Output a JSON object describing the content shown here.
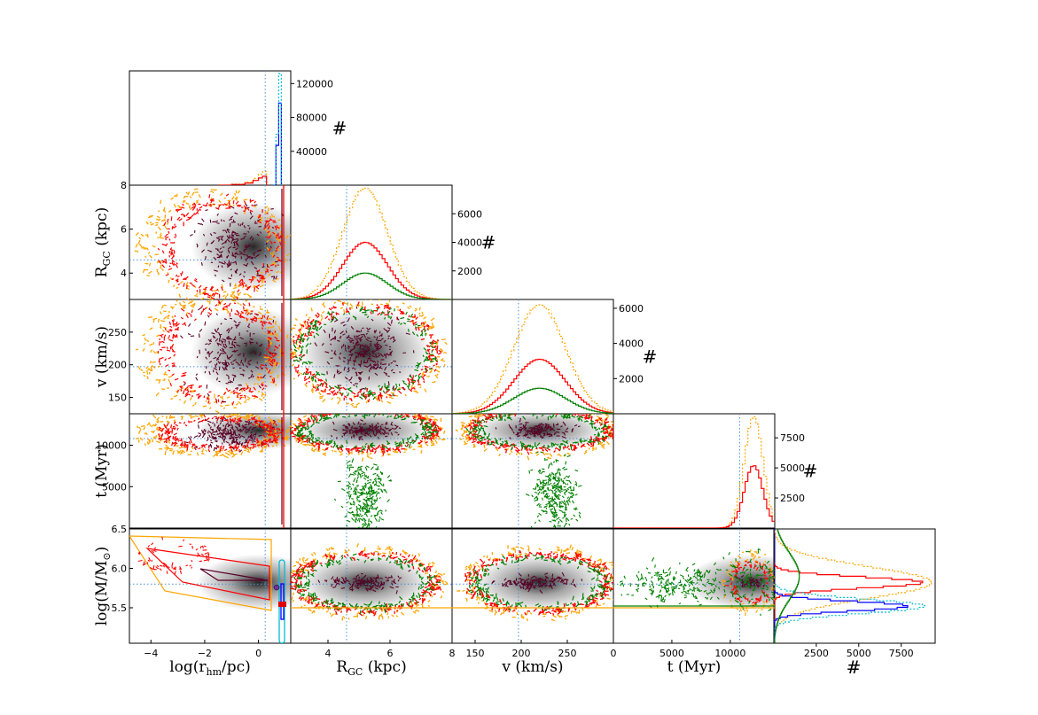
{
  "figure": {
    "type": "corner-plot",
    "background": "#ffffff",
    "colors": {
      "orange": "#ffa500",
      "red": "#ff0000",
      "green": "#008000",
      "blue": "#0000ff",
      "cyan": "#00bcd4",
      "maroon": "#5a0028",
      "dotted": "#4a90d9",
      "density": "#000000"
    }
  },
  "chart_data": {
    "type": "scatter",
    "variables": [
      {
        "name": "log(r_hm/pc)",
        "label_main": "log(r",
        "label_sub": "hm",
        "label_tail": "/pc)",
        "range": [
          -4.8,
          1.2
        ],
        "ticks": [
          -4,
          -2,
          0
        ],
        "tick_labels": [
          "−4",
          "−2",
          "0"
        ],
        "truth": 0.25
      },
      {
        "name": "R_GC (kpc)",
        "label_main": "R",
        "label_sub": "GC",
        "label_tail": " (kpc)",
        "range": [
          2.8,
          8.0
        ],
        "ticks": [
          4,
          6,
          8
        ],
        "tick_labels": [
          "4",
          "6",
          "8"
        ],
        "truth": 4.6
      },
      {
        "name": "v (km/s)",
        "label_main": "v (km/s)",
        "label_sub": "",
        "label_tail": "",
        "range": [
          125,
          300
        ],
        "ticks": [
          150,
          200,
          250
        ],
        "tick_labels": [
          "150",
          "200",
          "250"
        ],
        "truth": 197
      },
      {
        "name": "t (Myr)",
        "label_main": "t (Myr)",
        "label_sub": "",
        "label_tail": "",
        "range": [
          0,
          13800
        ],
        "ticks": [
          0,
          5000,
          10000
        ],
        "tick_labels": [
          "0",
          "5000",
          "10000"
        ],
        "ylabels_side": [
          "5000",
          "10000"
        ],
        "truth": 10800
      },
      {
        "name": "log(M/M_sun)",
        "label_main": "log(M/M",
        "label_sub": "⊙",
        "label_tail": ")",
        "range": [
          5.05,
          6.5
        ],
        "ticks": [
          5.5,
          6.0,
          6.5
        ],
        "tick_labels": [
          "5.5",
          "6.0",
          "6.5"
        ],
        "truth": 5.8
      }
    ],
    "row_ticks": {
      "R_GC": {
        "values": [
          4,
          6,
          8
        ],
        "labels": [
          "4",
          "6",
          "8"
        ]
      },
      "v": {
        "values": [
          150,
          200,
          250
        ],
        "labels": [
          "150",
          "200",
          "250"
        ]
      },
      "t": {
        "values": [
          5000,
          10000
        ],
        "labels": [
          "5000",
          "10000"
        ]
      },
      "logM": {
        "values": [
          5.5,
          6.0,
          6.5
        ],
        "labels": [
          "5.5",
          "6.0",
          "6.5"
        ]
      }
    },
    "marginals": [
      {
        "variable": "log(r_hm/pc)",
        "ylim": [
          0,
          135000
        ],
        "ticks": [
          40000,
          80000,
          120000
        ],
        "tick_labels": [
          "40000",
          "80000",
          "120000"
        ],
        "ylabel": "#",
        "series": [
          {
            "name": "orange",
            "color": "#ffa500",
            "style": "dotted",
            "x": [
              -1.5,
              -1.0,
              -0.5,
              -0.2,
              0.0,
              0.15,
              0.3
            ],
            "y": [
              0,
              1200,
              3800,
              8000,
              13000,
              16000,
              0
            ]
          },
          {
            "name": "red",
            "color": "#ff0000",
            "style": "solid",
            "x": [
              -1.5,
              -1.0,
              -0.5,
              -0.2,
              0.0,
              0.15,
              0.3
            ],
            "y": [
              0,
              800,
              2500,
              5500,
              8500,
              10500,
              0
            ]
          },
          {
            "name": "blue",
            "color": "#0000ff",
            "style": "solid",
            "x": [
              0.55,
              0.65,
              0.75,
              0.85
            ],
            "y": [
              0,
              47000,
              97000,
              0
            ]
          },
          {
            "name": "cyan",
            "color": "#00bcd4",
            "style": "dotted",
            "x": [
              0.55,
              0.65,
              0.75,
              0.85
            ],
            "y": [
              0,
              60000,
              132000,
              0
            ]
          }
        ]
      },
      {
        "variable": "R_GC (kpc)",
        "ylim": [
          0,
          8000
        ],
        "ticks": [
          2000,
          4000,
          6000
        ],
        "tick_labels": [
          "2000",
          "4000",
          "6000"
        ],
        "ylabel": "#",
        "series": [
          {
            "name": "orange",
            "color": "#ffa500",
            "style": "dotted",
            "peak": 7800,
            "mu": 5.2,
            "sigma": 0.72
          },
          {
            "name": "red",
            "color": "#ff0000",
            "style": "solid",
            "peak": 4000,
            "mu": 5.2,
            "sigma": 0.72
          },
          {
            "name": "green",
            "color": "#008000",
            "style": "solid",
            "peak": 1850,
            "mu": 5.2,
            "sigma": 0.72
          }
        ]
      },
      {
        "variable": "v (km/s)",
        "ylim": [
          0,
          6500
        ],
        "ticks": [
          2000,
          4000,
          6000
        ],
        "tick_labels": [
          "2000",
          "4000",
          "6000"
        ],
        "ylabel": "#",
        "series": [
          {
            "name": "orange",
            "color": "#ffa500",
            "style": "dotted",
            "peak": 6200,
            "mu": 220,
            "sigma": 28
          },
          {
            "name": "red",
            "color": "#ff0000",
            "style": "solid",
            "peak": 3100,
            "mu": 220,
            "sigma": 28
          },
          {
            "name": "green",
            "color": "#008000",
            "style": "solid",
            "peak": 1450,
            "mu": 220,
            "sigma": 28
          }
        ]
      },
      {
        "variable": "t (Myr)",
        "ylim": [
          0,
          9500
        ],
        "ticks": [
          2500,
          5000,
          7500
        ],
        "tick_labels": [
          "2500",
          "5000",
          "7500"
        ],
        "ylabel": "#",
        "series": [
          {
            "name": "orange",
            "color": "#ffa500",
            "style": "dotted",
            "peak": 9300,
            "mu": 12000,
            "sigma": 800
          },
          {
            "name": "red",
            "color": "#ff0000",
            "style": "solid",
            "peak": 5200,
            "mu": 12000,
            "sigma": 800
          }
        ]
      },
      {
        "variable": "log(M/M_sun)",
        "orientation": "horizontal",
        "xlim": [
          0,
          9500
        ],
        "ticks": [
          2500,
          5000,
          7500
        ],
        "tick_labels": [
          "2500",
          "5000",
          "7500"
        ],
        "xlabel": "#",
        "series": [
          {
            "name": "orange",
            "color": "#ffa500",
            "style": "dotted",
            "peak": 9300,
            "mu": 5.82,
            "sigma": 0.2
          },
          {
            "name": "red",
            "color": "#ff0000",
            "style": "solid",
            "peak": 8800,
            "mu": 5.82,
            "sigma": 0.07
          },
          {
            "name": "cyan",
            "color": "#00bcd4",
            "style": "dotted",
            "peak": 8900,
            "mu": 5.52,
            "sigma": 0.09
          },
          {
            "name": "blue",
            "color": "#0000ff",
            "style": "solid",
            "peak": 7900,
            "mu": 5.52,
            "sigma": 0.06
          },
          {
            "name": "green",
            "color": "#008000",
            "style": "solid",
            "peak": 1500,
            "mu": 5.9,
            "sigma": 0.3
          }
        ]
      }
    ],
    "joint_panels": [
      {
        "row": "R_GC (kpc)",
        "col": "log(r_hm/pc)",
        "contours": [
          "orange",
          "red",
          "maroon"
        ],
        "center": [
          -0.2,
          5.2
        ]
      },
      {
        "row": "v (km/s)",
        "col": "log(r_hm/pc)",
        "contours": [
          "orange",
          "red",
          "maroon"
        ],
        "center": [
          -0.2,
          220
        ]
      },
      {
        "row": "v (km/s)",
        "col": "R_GC (kpc)",
        "contours": [
          "orange",
          "red",
          "green",
          "maroon"
        ],
        "center": [
          5.2,
          220
        ]
      },
      {
        "row": "t (Myr)",
        "col": "log(r_hm/pc)",
        "contours": [
          "orange",
          "red",
          "maroon"
        ],
        "center": [
          0.0,
          11800
        ]
      },
      {
        "row": "t (Myr)",
        "col": "R_GC (kpc)",
        "contours": [
          "orange",
          "red",
          "green",
          "maroon"
        ],
        "center": [
          5.2,
          11800
        ]
      },
      {
        "row": "t (Myr)",
        "col": "v (km/s)",
        "contours": [
          "orange",
          "red",
          "green",
          "maroon"
        ],
        "center": [
          220,
          11800
        ]
      },
      {
        "row": "log(M/M_sun)",
        "col": "log(r_hm/pc)",
        "contours": [
          "orange",
          "red",
          "maroon",
          "blue",
          "cyan"
        ],
        "center": [
          0.0,
          5.82
        ]
      },
      {
        "row": "log(M/M_sun)",
        "col": "R_GC (kpc)",
        "contours": [
          "orange",
          "red",
          "green",
          "maroon"
        ],
        "center": [
          5.2,
          5.82
        ]
      },
      {
        "row": "log(M/M_sun)",
        "col": "v (km/s)",
        "contours": [
          "orange",
          "red",
          "green",
          "maroon"
        ],
        "center": [
          220,
          5.82
        ]
      },
      {
        "row": "log(M/M_sun)",
        "col": "t (Myr)",
        "contours": [
          "orange",
          "red",
          "green",
          "maroon"
        ],
        "center": [
          11800,
          5.82
        ]
      }
    ]
  }
}
